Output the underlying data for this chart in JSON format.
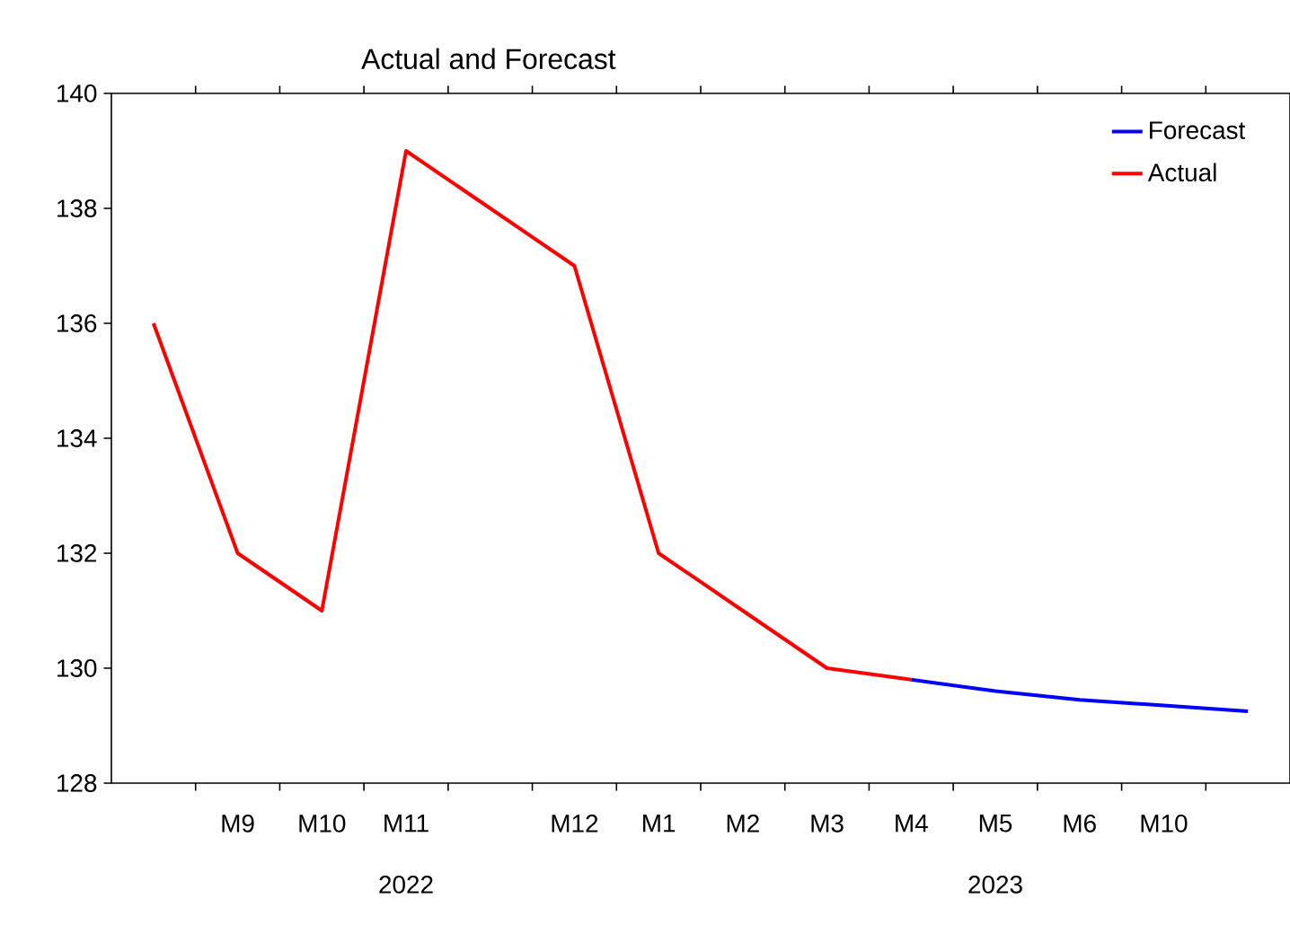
{
  "chart_data": {
    "type": "line",
    "title": "Actual and Forecast",
    "categories": [
      null,
      "M9",
      "M10",
      "M11",
      null,
      "M12",
      "M1",
      "M2",
      "M3",
      "M4",
      "M5",
      "M6",
      "M10",
      null
    ],
    "ylim": [
      128,
      140
    ],
    "yticks": [
      128,
      130,
      132,
      134,
      136,
      138,
      140
    ],
    "series": [
      {
        "name": "Forecast",
        "color": "#0000ff",
        "values": [
          null,
          null,
          null,
          null,
          null,
          null,
          null,
          null,
          null,
          129.8,
          129.6,
          129.45,
          129.35,
          129.25
        ]
      },
      {
        "name": "Actual",
        "color": "#ff0000",
        "values": [
          136,
          132,
          131,
          139,
          138,
          137,
          132,
          131,
          130,
          129.8,
          null,
          null,
          null,
          null
        ]
      }
    ],
    "annotations": [
      "2022",
      "2023"
    ],
    "legend": "top right",
    "grid": false,
    "marker": "none",
    "line_style": "solid"
  }
}
